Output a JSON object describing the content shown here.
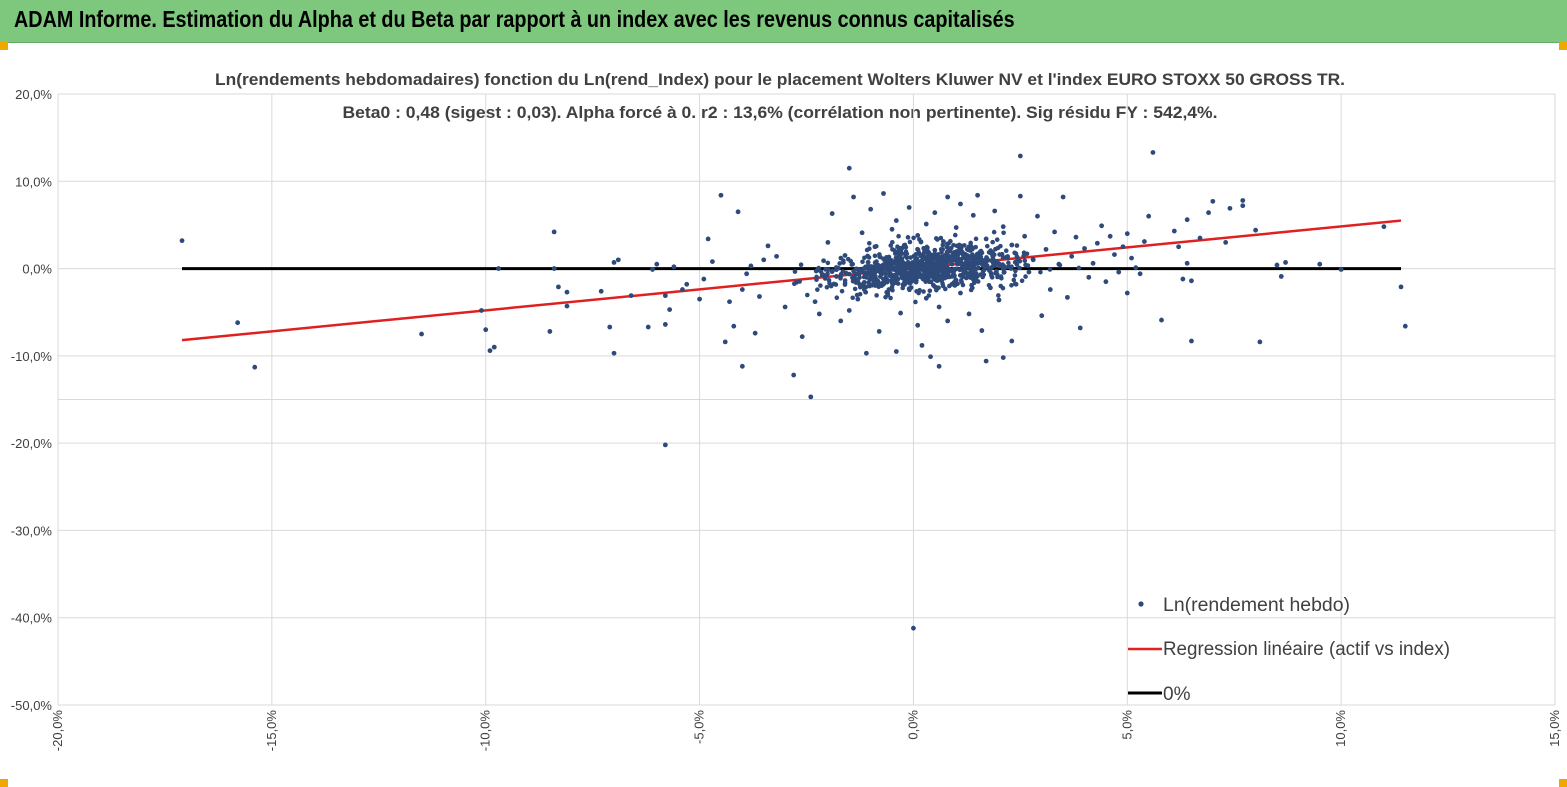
{
  "header": {
    "title": "ADAM Informe. Estimation du Alpha et du Beta par rapport à un index avec les revenus connus capitalisés"
  },
  "chart_data": {
    "type": "scatter",
    "title_line1": "Ln(rendements hebdomadaires) fonction du Ln(rend_Index) pour le placement Wolters Kluwer NV et l'index EURO STOXX 50 GROSS TR.",
    "title_line2": "Beta0 : 0,48 (sigest : 0,03).  Alpha forcé à 0. r2 : 13,6% (corrélation non pertinente). Sig résidu FY : 542,4%.",
    "xlim": [
      -0.2,
      0.15
    ],
    "ylim": [
      -0.5,
      0.2
    ],
    "x_ticks": [
      -0.2,
      -0.15,
      -0.1,
      -0.05,
      0.0,
      0.05,
      0.1,
      0.15
    ],
    "x_tick_labels": [
      "-20,0%",
      "-15,0%",
      "-10,0%",
      "-5,0%",
      "0,0%",
      "5,0%",
      "10,0%",
      "15,0%"
    ],
    "y_ticks": [
      0.2,
      0.1,
      0.0,
      -0.1,
      -0.2,
      -0.3,
      -0.4,
      -0.5
    ],
    "y_tick_labels": [
      "20,0%",
      "10,0%",
      "0,0%",
      "-10,0%",
      "-20,0%",
      "-30,0%",
      "-40,0%",
      "-50,0%"
    ],
    "grid": true,
    "beta": 0.48,
    "alpha": 0,
    "series": [
      {
        "name": "Ln(rendement hebdo)",
        "kind": "scatter",
        "color": "#2e4a7a",
        "points": [
          [
            -0.171,
            0.032
          ],
          [
            -0.158,
            -0.062
          ],
          [
            -0.154,
            -0.113
          ],
          [
            -0.115,
            -0.075
          ],
          [
            -0.101,
            -0.048
          ],
          [
            -0.1,
            -0.07
          ],
          [
            -0.099,
            -0.094
          ],
          [
            -0.098,
            -0.09
          ],
          [
            -0.097,
            0.0
          ],
          [
            -0.085,
            -0.072
          ],
          [
            -0.084,
            0.042
          ],
          [
            -0.084,
            0.0
          ],
          [
            -0.083,
            -0.021
          ],
          [
            -0.081,
            -0.027
          ],
          [
            -0.081,
            -0.043
          ],
          [
            -0.073,
            -0.026
          ],
          [
            -0.071,
            -0.067
          ],
          [
            -0.07,
            -0.097
          ],
          [
            -0.07,
            0.007
          ],
          [
            -0.069,
            0.01
          ],
          [
            -0.066,
            -0.031
          ],
          [
            -0.062,
            -0.067
          ],
          [
            -0.061,
            -0.001
          ],
          [
            -0.06,
            0.005
          ],
          [
            -0.058,
            -0.064
          ],
          [
            -0.058,
            -0.031
          ],
          [
            -0.058,
            -0.202
          ],
          [
            -0.057,
            -0.047
          ],
          [
            -0.056,
            0.002
          ],
          [
            -0.054,
            -0.024
          ],
          [
            -0.053,
            -0.018
          ],
          [
            -0.05,
            -0.035
          ],
          [
            -0.049,
            -0.012
          ],
          [
            -0.048,
            0.034
          ],
          [
            -0.047,
            0.008
          ],
          [
            -0.045,
            0.084
          ],
          [
            -0.044,
            -0.084
          ],
          [
            -0.043,
            -0.038
          ],
          [
            -0.042,
            -0.066
          ],
          [
            -0.041,
            0.065
          ],
          [
            -0.04,
            -0.112
          ],
          [
            -0.04,
            -0.024
          ],
          [
            -0.039,
            -0.006
          ],
          [
            -0.038,
            0.003
          ],
          [
            -0.037,
            -0.074
          ],
          [
            -0.036,
            -0.032
          ],
          [
            -0.035,
            0.01
          ],
          [
            -0.034,
            0.026
          ],
          [
            -0.032,
            0.014
          ],
          [
            -0.03,
            -0.044
          ],
          [
            -0.028,
            -0.122
          ],
          [
            -0.026,
            -0.078
          ],
          [
            -0.024,
            -0.147
          ],
          [
            -0.023,
            -0.038
          ],
          [
            -0.022,
            -0.052
          ],
          [
            -0.021,
            0.009
          ],
          [
            -0.02,
            0.03
          ],
          [
            -0.019,
            0.063
          ],
          [
            -0.018,
            -0.009
          ],
          [
            -0.017,
            -0.06
          ],
          [
            -0.016,
            0.015
          ],
          [
            -0.015,
            -0.048
          ],
          [
            -0.015,
            0.115
          ],
          [
            -0.014,
            0.082
          ],
          [
            -0.013,
            -0.035
          ],
          [
            -0.012,
            0.041
          ],
          [
            -0.011,
            -0.01
          ],
          [
            -0.011,
            -0.097
          ],
          [
            -0.01,
            0.068
          ],
          [
            -0.009,
            0.025
          ],
          [
            -0.008,
            -0.072
          ],
          [
            -0.008,
            0.003
          ],
          [
            -0.007,
            0.086
          ],
          [
            -0.006,
            -0.03
          ],
          [
            -0.006,
            0.012
          ],
          [
            -0.005,
            0.045
          ],
          [
            -0.005,
            -0.016
          ],
          [
            -0.004,
            0.055
          ],
          [
            -0.004,
            -0.095
          ],
          [
            -0.003,
            0.008
          ],
          [
            -0.003,
            -0.051
          ],
          [
            -0.002,
            0.027
          ],
          [
            -0.002,
            -0.004
          ],
          [
            -0.001,
            0.07
          ],
          [
            -0.001,
            -0.023
          ],
          [
            0.0,
            0.002
          ],
          [
            0.0,
            -0.412
          ],
          [
            0.001,
            -0.065
          ],
          [
            0.001,
            0.038
          ],
          [
            0.002,
            -0.088
          ],
          [
            0.002,
            0.015
          ],
          [
            0.003,
            -0.034
          ],
          [
            0.003,
            0.051
          ],
          [
            0.004,
            -0.008
          ],
          [
            0.004,
            -0.101
          ],
          [
            0.005,
            0.064
          ],
          [
            0.005,
            0.021
          ],
          [
            0.006,
            -0.112
          ],
          [
            0.006,
            -0.044
          ],
          [
            0.007,
            0.006
          ],
          [
            0.007,
            0.031
          ],
          [
            0.008,
            0.082
          ],
          [
            0.008,
            -0.06
          ],
          [
            0.009,
            0.012
          ],
          [
            0.009,
            -0.018
          ],
          [
            0.01,
            0.047
          ],
          [
            0.011,
            -0.028
          ],
          [
            0.011,
            0.074
          ],
          [
            0.012,
            0.003
          ],
          [
            0.013,
            -0.052
          ],
          [
            0.013,
            0.025
          ],
          [
            0.014,
            0.061
          ],
          [
            0.014,
            -0.012
          ],
          [
            0.015,
            0.084
          ],
          [
            0.016,
            0.018
          ],
          [
            0.016,
            -0.071
          ],
          [
            0.017,
            -0.106
          ],
          [
            0.017,
            0.034
          ],
          [
            0.018,
            -0.022
          ],
          [
            0.019,
            0.066
          ],
          [
            0.019,
            0.004
          ],
          [
            0.02,
            -0.036
          ],
          [
            0.021,
            0.048
          ],
          [
            0.021,
            -0.102
          ],
          [
            0.022,
            0.012
          ],
          [
            0.023,
            -0.083
          ],
          [
            0.023,
            0.027
          ],
          [
            0.024,
            -0.018
          ],
          [
            0.025,
            0.083
          ],
          [
            0.025,
            0.129
          ],
          [
            0.026,
            0.037
          ],
          [
            0.027,
            -0.004
          ],
          [
            0.028,
            0.01
          ],
          [
            0.029,
            0.06
          ],
          [
            0.03,
            -0.054
          ],
          [
            0.031,
            0.022
          ],
          [
            0.032,
            -0.024
          ],
          [
            0.033,
            0.042
          ],
          [
            0.034,
            0.005
          ],
          [
            0.035,
            0.082
          ],
          [
            0.036,
            -0.033
          ],
          [
            0.037,
            0.014
          ],
          [
            0.038,
            0.036
          ],
          [
            0.039,
            -0.068
          ],
          [
            0.04,
            0.023
          ],
          [
            0.041,
            -0.01
          ],
          [
            0.042,
            0.006
          ],
          [
            0.043,
            0.029
          ],
          [
            0.044,
            0.049
          ],
          [
            0.045,
            -0.015
          ],
          [
            0.046,
            0.037
          ],
          [
            0.047,
            0.016
          ],
          [
            0.048,
            -0.004
          ],
          [
            0.049,
            0.025
          ],
          [
            0.05,
            0.04
          ],
          [
            0.05,
            -0.028
          ],
          [
            0.051,
            0.012
          ],
          [
            0.052,
            0.001
          ],
          [
            0.053,
            -0.006
          ],
          [
            0.054,
            0.031
          ],
          [
            0.055,
            0.06
          ],
          [
            0.056,
            0.133
          ],
          [
            0.058,
            -0.059
          ],
          [
            0.061,
            0.043
          ],
          [
            0.062,
            0.025
          ],
          [
            0.063,
            -0.012
          ],
          [
            0.064,
            0.006
          ],
          [
            0.064,
            0.056
          ],
          [
            0.065,
            -0.014
          ],
          [
            0.065,
            -0.083
          ],
          [
            0.067,
            0.035
          ],
          [
            0.069,
            0.064
          ],
          [
            0.07,
            0.077
          ],
          [
            0.073,
            0.03
          ],
          [
            0.074,
            0.069
          ],
          [
            0.077,
            0.072
          ],
          [
            0.077,
            0.078
          ],
          [
            0.08,
            0.044
          ],
          [
            0.081,
            -0.084
          ],
          [
            0.085,
            0.004
          ],
          [
            0.086,
            -0.009
          ],
          [
            0.087,
            0.007
          ],
          [
            0.095,
            0.005
          ],
          [
            0.1,
            -0.001
          ],
          [
            0.11,
            0.048
          ],
          [
            0.114,
            -0.021
          ],
          [
            0.115,
            -0.066
          ]
        ]
      },
      {
        "name": "Regression linéaire (actif vs index)",
        "kind": "line",
        "color": "#e02020",
        "x": [
          -0.171,
          0.114
        ],
        "y": [
          -0.082,
          0.055
        ]
      },
      {
        "name": "0%",
        "kind": "line",
        "color": "#000000",
        "x": [
          -0.171,
          0.114
        ],
        "y": [
          0.0,
          0.0
        ]
      }
    ],
    "legend": {
      "position": "bottom-right",
      "entries": [
        "Ln(rendement hebdo)",
        "Regression linéaire (actif vs index)",
        "0%"
      ]
    }
  }
}
